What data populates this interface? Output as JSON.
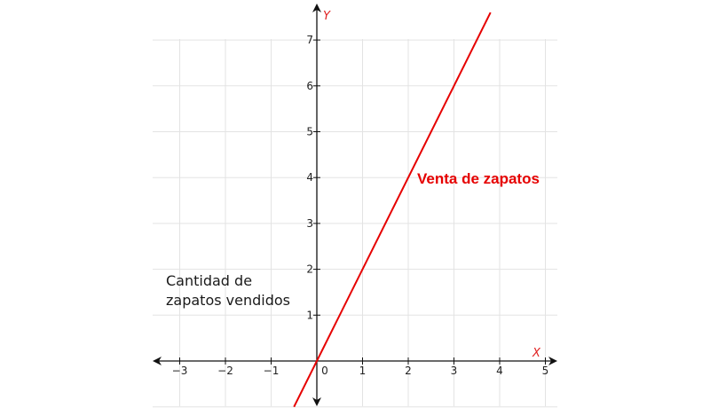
{
  "chart_data": {
    "type": "line",
    "xlabel": "X",
    "ylabel": "Y",
    "xlim": [
      -3.6,
      5.3
    ],
    "ylim": [
      -1.0,
      7.7
    ],
    "x_ticks": [
      -3,
      -2,
      -1,
      0,
      1,
      2,
      3,
      4,
      5
    ],
    "y_ticks": [
      1,
      2,
      3,
      4,
      5,
      6,
      7
    ],
    "x_tick_labels": [
      "−3",
      "−2",
      "−1",
      "0",
      "1",
      "2",
      "3",
      "4",
      "5"
    ],
    "y_tick_labels": [
      "1",
      "2",
      "3",
      "4",
      "5",
      "6",
      "7"
    ],
    "grid": true,
    "series": [
      {
        "name": "Venta de zapatos",
        "color": "#e60000",
        "x": [
          -0.5,
          3.8
        ],
        "y": [
          -1.0,
          7.6
        ]
      }
    ],
    "annotation": [
      "Cantidad de",
      "zapatos vendidos"
    ]
  }
}
